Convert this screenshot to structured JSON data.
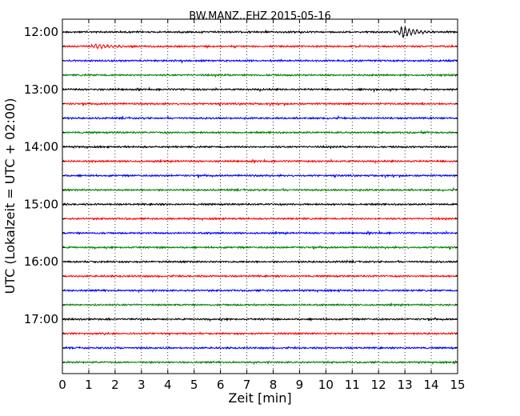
{
  "chart_data": {
    "type": "line",
    "title": "BW.MANZ..EHZ 2015-05-16",
    "xlabel": "Zeit  [min]",
    "ylabel": "UTC (Lokalzeit = UTC + 02:00)",
    "xlim": [
      0,
      15
    ],
    "x_ticks": [
      "0",
      "1",
      "2",
      "3",
      "4",
      "5",
      "6",
      "7",
      "8",
      "9",
      "10",
      "11",
      "12",
      "13",
      "14",
      "15"
    ],
    "y_tick_labels": [
      "12:00",
      "13:00",
      "14:00",
      "15:00",
      "16:00",
      "17:00"
    ],
    "row_interval_minutes": 15,
    "row_count": 24,
    "row_colors": [
      "#000000",
      "#ff0000",
      "#0000ff",
      "#007f00"
    ],
    "vertical_grid": "dotted at each minute",
    "events": [
      {
        "row_start": "12:00",
        "minute": 12.9,
        "description_level": "large"
      },
      {
        "row_start": "12:15",
        "minute": 1.3,
        "description_level": "small"
      }
    ]
  }
}
